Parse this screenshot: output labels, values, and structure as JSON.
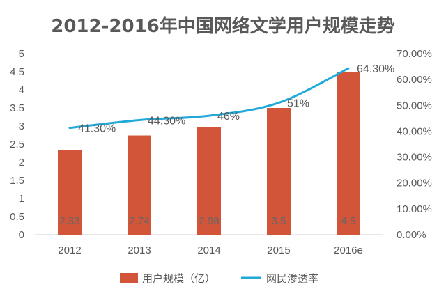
{
  "chart_data": {
    "type": "bar",
    "title": "2012-2016年中国网络文学用户规模走势",
    "categories": [
      "2012",
      "2013",
      "2014",
      "2015",
      "2016e"
    ],
    "series": [
      {
        "name": "用户规模（亿）",
        "type": "bar",
        "axis": "left",
        "color": "#D2553A",
        "values": [
          2.33,
          2.74,
          2.98,
          3.5,
          4.5
        ],
        "labels": [
          "2.33",
          "2.74",
          "2.98",
          "3.5",
          "4.5"
        ]
      },
      {
        "name": "网民渗透率",
        "type": "line",
        "axis": "right",
        "color": "#21A9D9",
        "values": [
          41.3,
          44.3,
          46,
          51,
          64.3
        ],
        "labels": [
          "41.30%",
          "44.30%",
          "46%",
          "51%",
          "64.30%"
        ]
      }
    ],
    "y_left": {
      "ylim": [
        0,
        5
      ],
      "ticks": [
        "0",
        "0.5",
        "1",
        "1.5",
        "2",
        "2.5",
        "3",
        "3.5",
        "4",
        "4.5",
        "5"
      ]
    },
    "y_right": {
      "ylim": [
        0,
        70
      ],
      "ticks": [
        "0.00%",
        "10.00%",
        "20.00%",
        "30.00%",
        "40.00%",
        "50.00%",
        "60.00%",
        "70.00%"
      ]
    },
    "grid": false,
    "legend_position": "bottom"
  }
}
